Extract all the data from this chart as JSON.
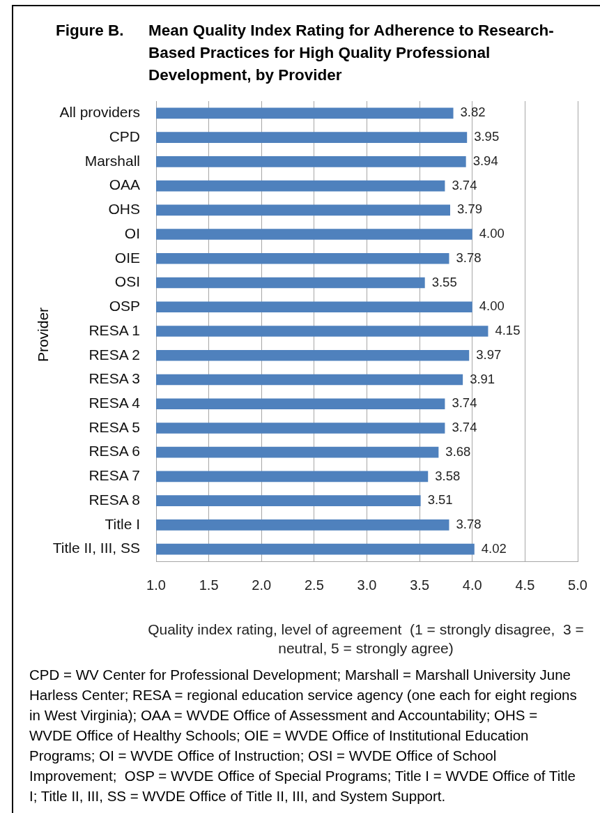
{
  "chart_data": {
    "type": "bar",
    "orientation": "horizontal",
    "title": "Figure B.\tMean Quality Index Rating for Adherence to Research-Based Practices for High Quality Professional Development, by Provider",
    "xlabel": "Quality index rating, level of agreement  (1 = strongly disagree,  3 = neutral, 5 = strongly agree)",
    "ylabel": "Provider",
    "categories": [
      "All providers",
      "CPD",
      "Marshall",
      "OAA",
      "OHS",
      "OI",
      "OIE",
      "OSI",
      "OSP",
      "RESA 1",
      "RESA 2",
      "RESA 3",
      "RESA 4",
      "RESA 5",
      "RESA 6",
      "RESA 7",
      "RESA 8",
      "Title I",
      "Title II, III, SS"
    ],
    "values": [
      3.82,
      3.95,
      3.94,
      3.74,
      3.79,
      4.0,
      3.78,
      3.55,
      4.0,
      4.15,
      3.97,
      3.91,
      3.74,
      3.74,
      3.68,
      3.58,
      3.51,
      3.78,
      4.02
    ],
    "value_labels": [
      "3.82",
      "3.95",
      "3.94",
      "3.74",
      "3.79",
      "4.00",
      "3.78",
      "3.55",
      "4.00",
      "4.15",
      "3.97",
      "3.91",
      "3.74",
      "3.74",
      "3.68",
      "3.58",
      "3.51",
      "3.78",
      "4.02"
    ],
    "color": "#4f81bd",
    "xlim": [
      1,
      5
    ],
    "xticks": [
      {
        "value": 1,
        "label": "1.0"
      },
      {
        "value": 1.5,
        "label": "1.5"
      },
      {
        "value": 2,
        "label": "2.0"
      },
      {
        "value": 2.5,
        "label": "2.5"
      },
      {
        "value": 3,
        "label": "3.0"
      },
      {
        "value": 3.5,
        "label": "3.5"
      },
      {
        "value": 4,
        "label": "4.0"
      },
      {
        "value": 4.5,
        "label": "4.5"
      },
      {
        "value": 5,
        "label": "5.0"
      }
    ],
    "grid": "x",
    "annotations": [
      "CPD = WV Center for Professional Development; Marshall = Marshall University June Harless Center; RESA = regional education service agency (one each for eight regions in West Virginia); OAA = WVDE Office of Assessment and Accountability; OHS = WVDE Office of Healthy Schools; OIE = WVDE Office of Institutional Education Programs; OI = WVDE Office of Instruction; OSI = WVDE Office of School Improvement;  OSP = WVDE Office of Special Programs; Title I = WVDE Office of Title I; Title II, III, SS = WVDE Office of Title II, III, and System Support."
    ]
  }
}
